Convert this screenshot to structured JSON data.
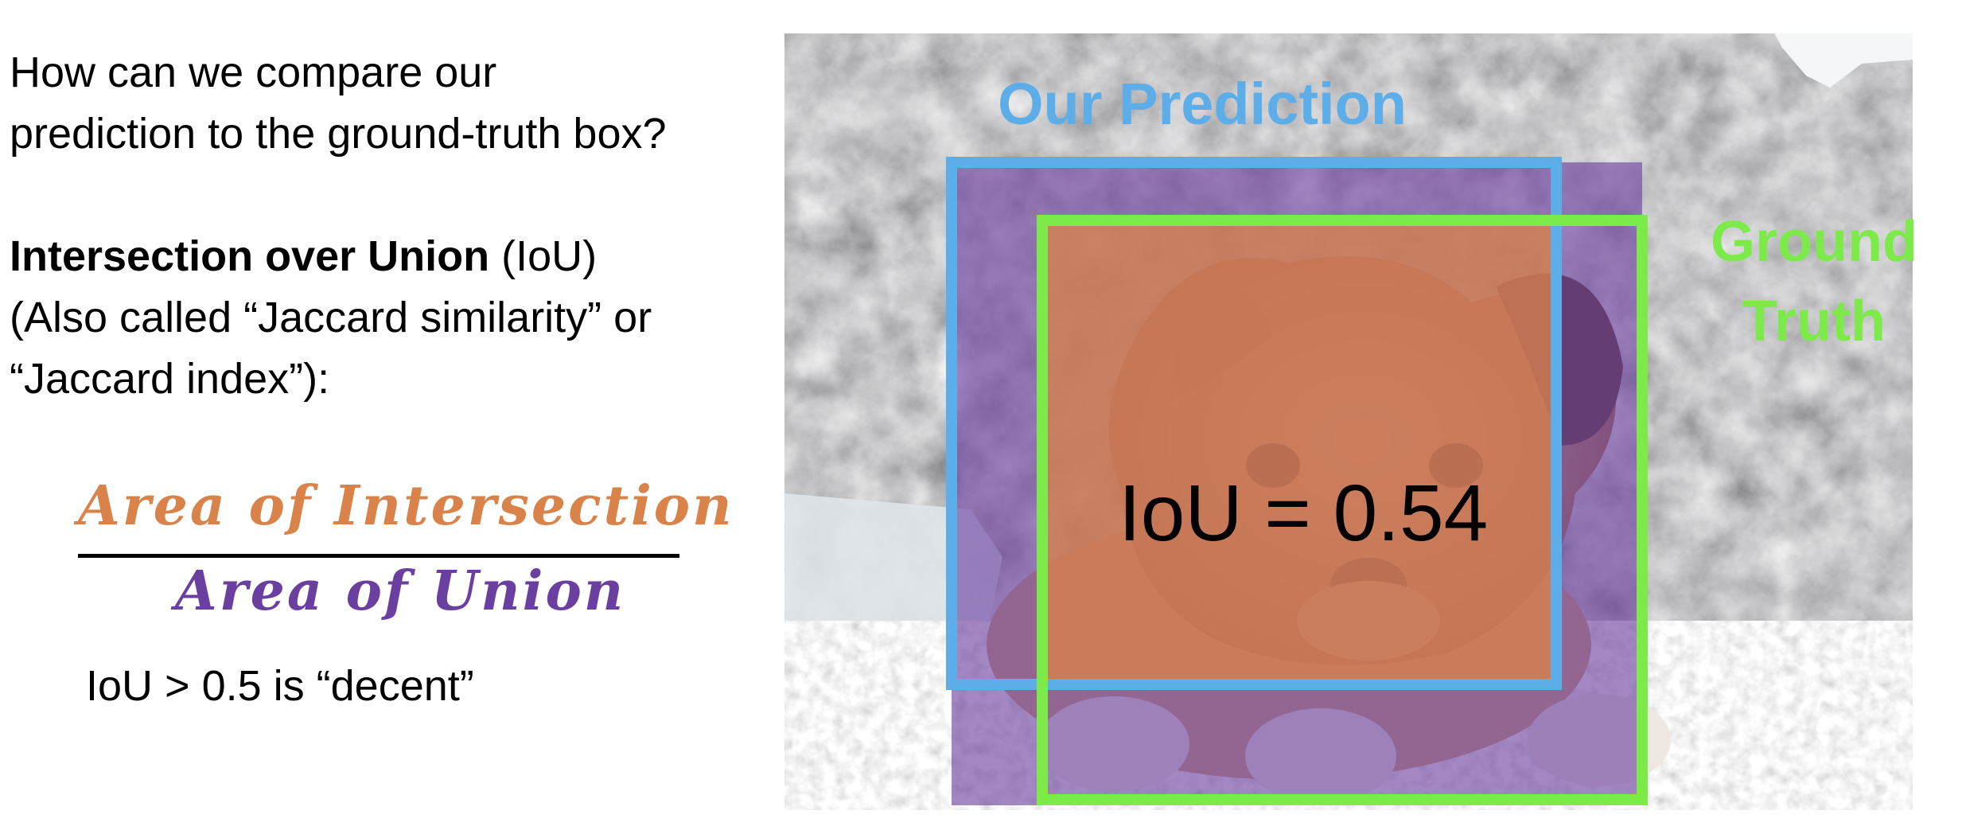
{
  "text": {
    "question_line1": "How can we compare our",
    "question_line2": "prediction to the ground-truth box?",
    "iou_term": "Intersection over Union",
    "iou_abbr": "(IoU)",
    "aka_line1": "(Also called “Jaccard similarity” or",
    "aka_line2": "“Jaccard index”):",
    "fraction_numerator": "Area of Intersection",
    "fraction_denominator": "Area of Union",
    "threshold_note": "IoU > 0.5 is “decent”"
  },
  "image": {
    "prediction_label": "Our Prediction",
    "ground_truth_label": "Ground Truth",
    "iou_value_text": "IoU = 0.54"
  },
  "colors": {
    "text": "#000000",
    "intersection": "#D9824A",
    "union": "#6B3FA0",
    "prediction_box": "#5DADE8",
    "ground_truth_box": "#7CEB4A",
    "fraction_bar": "#000000"
  }
}
